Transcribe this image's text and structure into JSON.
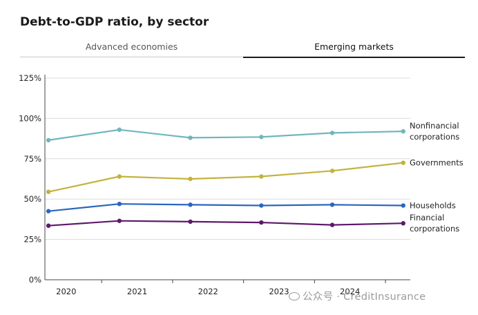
{
  "header": {
    "title": "Debt-to-GDP ratio, by sector"
  },
  "tabs": [
    {
      "label": "Advanced economies",
      "active": false
    },
    {
      "label": "Emerging markets",
      "active": true
    }
  ],
  "watermark": "公众号 · CreditInsurance",
  "chart_data": {
    "type": "line",
    "title": "Debt-to-GDP ratio, by sector",
    "xlabel": "",
    "ylabel": "",
    "ylim": [
      0,
      125
    ],
    "y_ticks": [
      "0%",
      "25%",
      "50%",
      "75%",
      "100%",
      "125%"
    ],
    "y_tick_values": [
      0,
      25,
      50,
      75,
      100,
      125
    ],
    "x_tick_labels": [
      "2020",
      "2021",
      "2022",
      "2023",
      "2024"
    ],
    "x": [
      2019.75,
      2020.75,
      2021.75,
      2022.75,
      2023.75,
      2024.75
    ],
    "xlim": [
      2019.7,
      2024.85
    ],
    "grid": true,
    "legend": "line end labels, right",
    "series": [
      {
        "name": "Nonfinancial corporations",
        "label_lines": [
          "Nonfinancial",
          "corporations"
        ],
        "color": "#6fb6bd",
        "values": [
          86.5,
          93,
          88,
          88.5,
          91,
          92
        ]
      },
      {
        "name": "Governments",
        "label_lines": [
          "Governments"
        ],
        "color": "#c3b33d",
        "values": [
          54.5,
          64,
          62.5,
          64,
          67.5,
          72.5
        ]
      },
      {
        "name": "Households",
        "label_lines": [
          "Households"
        ],
        "color": "#2a66bd",
        "values": [
          42.5,
          47,
          46.5,
          46,
          46.5,
          46
        ]
      },
      {
        "name": "Financial corporations",
        "label_lines": [
          "Financial",
          "corporations"
        ],
        "color": "#5e186b",
        "values": [
          33.5,
          36.5,
          36,
          35.5,
          34,
          35
        ]
      }
    ]
  }
}
